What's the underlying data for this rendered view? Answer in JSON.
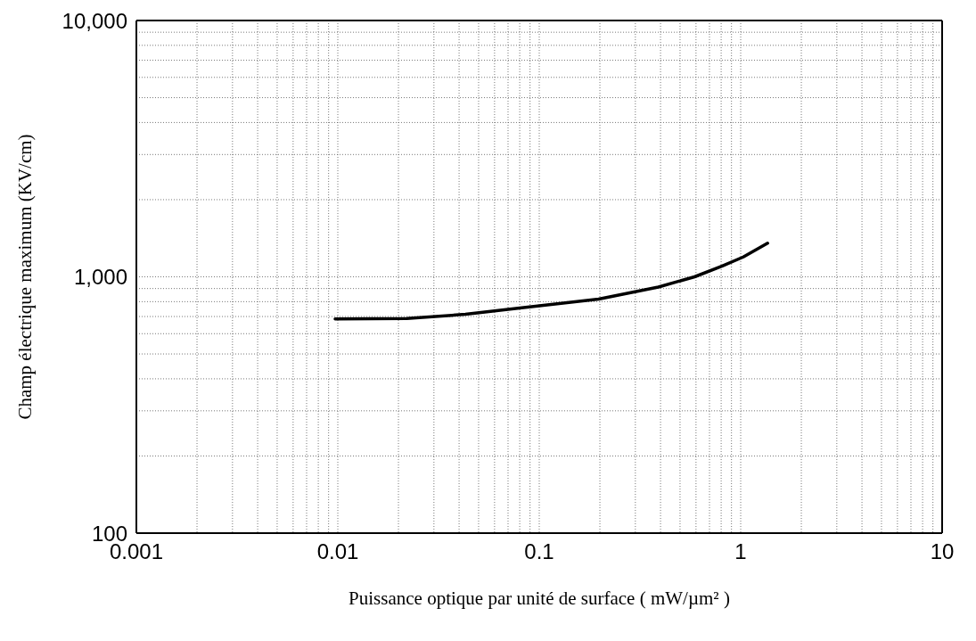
{
  "chart_data": {
    "type": "line",
    "xlabel": "Puissance optique par unité de surface  ( mW/µm² )",
    "ylabel": "Champ électrique maximum (KV/cm)",
    "log": "xy",
    "grid": true,
    "marker": "none",
    "line_style": "solid",
    "xlim": [
      0.001,
      10
    ],
    "xticks": [
      0.001,
      0.01,
      0.1,
      1,
      10
    ],
    "ylim": [
      100,
      10000
    ],
    "yticks": [
      {
        "value": 100,
        "label": "100"
      },
      {
        "value": 1000,
        "label": "1,000"
      },
      {
        "value": 10000,
        "label": "10,000"
      }
    ],
    "series": [
      {
        "color": "#000000",
        "x": [
          0.0097,
          0.022,
          0.043,
          0.08,
          0.197,
          0.39,
          0.59,
          0.81,
          1.03,
          1.36
        ],
        "values": [
          685,
          688,
          714,
          755,
          819,
          912,
          1000,
          1102,
          1195,
          1353
        ]
      }
    ]
  }
}
